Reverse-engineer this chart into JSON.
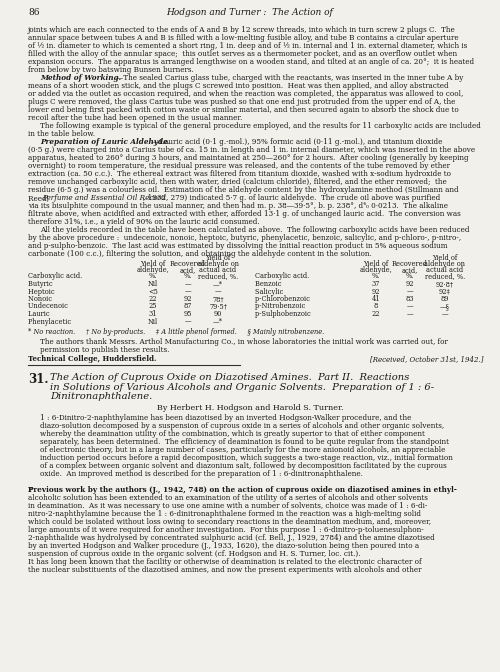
{
  "page_number": "86",
  "header_title": "Hodgson and Turner :  The Action of",
  "bg_color": "#f2f0eb",
  "text_color": "#1a1a1a",
  "body_text_intro": [
    "joints which are each connected to the ends of A and B by 12 screw threads, into which in turn screw 2 plugs C.  The",
    "annular space between tubes A and B is filled with a low-melting fusible alloy, and tube B contains a circular aperture",
    "of ½ in. diameter to which is cemented a short ring, 1 in. deep and of ½ in. internal and 1 in. external diameter, which is",
    "filled with the alloy of the annular space;  this outlet serves as a thermometer pocket, and as an overflow outlet when",
    "expansion occurs.  The apparatus is arranged lengthwise on a wooden stand, and tilted at an angle of ca. 20°;  it is heated",
    "from below by two batswing Bunsen burners."
  ],
  "method_heading": "Method of Working.",
  "method_rest": "—The sealed Carius glass tube, charged with the reactants, was inserted in the inner tube A by",
  "method_text": [
    "means of a short wooden stick, and the plugs C screwed into position.  Heat was then applied, and alloy abstracted",
    "or added via the outlet as occasion required, and when the reaction was completed, the apparatus was allowed to cool,",
    "plugs C were removed, the glass Carius tube was pushed so that one end just protruded from the upper end of A, the",
    "lower end being first packed with cotton waste or similar material, and then secured again to absorb the shock due to",
    "recoil after the tube had been opened in the usual manner."
  ],
  "para2": [
    "The following example is typical of the general procedure employed, and the results for 11 carboxylic acids are included",
    "in the table below."
  ],
  "prep_heading": "Preparation of Lauric Aldehyde.",
  "prep_rest": "—Lauric acid (0·1 g.-mol.), 95% formic acid (0·11 g.-mol.), and titanium dioxide",
  "prep_text": [
    "(0·5 g.) were charged into a Carius tube of ca. 15 in. in length and 1 in. internal diameter, which was inserted in the above",
    "apparatus, heated to 260° during 3 hours, and maintained at 250—260° for 2 hours.  After cooling (generally by keeping",
    "overnight) to room temperature, the residual pressure was released, and the contents of the tube removed by ether",
    "extraction (ca. 50 c.c.).  The ethereal extract was filtered from titanium dioxide, washed with x-sodium hydroxide to",
    "remove unchanged carboxylic acid, then with water, dried (calcium chloride), filtered, and the ether removed;  the",
    "residue (6·5 g.) was a colourless oil.  Estimation of the aldehyde content by the hydroxylamine method (Stillmann and"
  ],
  "prep_text_reed_pre": "Reed, ",
  "prep_text_reed_italic": "Perfume and Essential Oil Record",
  "prep_text_reed_post": ", 1932, 279) indicated 5·7 g. of lauric aldehyde.  The crude oil above was purified",
  "prep_text2": [
    "via its bisulphite compound in the usual manner, and then had m. p. 38—39·5°, b. p. 238°, d⁴₀ 0·0213.  The alkaline",
    "filtrate above, when acidified and extracted with ether, afforded 13·1 g. of unchanged lauric acid.  The conversion was",
    "therefore 31%, i.e., a yield of 90% on the lauric acid consumed."
  ],
  "para3": [
    "All the yields recorded in the table have been calculated as above.  The following carboxylic acids have been reduced",
    "by the above procedure :  undecenoic, nonoic, heptoic, butyric, phenylacetic, benzoic, salicylic, and p-chloro-, p-nitro-,",
    "and p-sulpho-benzoic.  The last acid was estimated by dissolving the initial reaction product in 5% aqueous sodium",
    "carbonate (100 c.c.), filtering the solution, and obtaining the aldehyde content in the solution."
  ],
  "table_left_acids": [
    "Butyric           ",
    "Heptoic          ",
    "Nonoic           ",
    "Undecenoic      ",
    "Lauric           ",
    "Phenylacetic    "
  ],
  "table_left_yield": [
    "Nil",
    "<5",
    "22",
    "25",
    "31",
    "Nil"
  ],
  "table_left_recov": [
    "—",
    "—",
    "92",
    "87",
    "95",
    "—"
  ],
  "table_left_actual": [
    "—*",
    "—",
    "78†",
    "79·5†",
    "90",
    "—*"
  ],
  "table_right_acids": [
    "Benzoic           ",
    "Salicylic           ",
    "p-Chlorobenzoic    ",
    "p-Nitrobenzoic    ",
    "p-Sulphobenzoic   ",
    ""
  ],
  "table_right_yield": [
    "37",
    "92",
    "41",
    "8",
    "22",
    ""
  ],
  "table_right_recov": [
    "92",
    "—",
    "83",
    "—",
    "—",
    ""
  ],
  "table_right_actual": [
    "92·8†",
    "92‡",
    "89",
    "—§",
    "—",
    ""
  ],
  "footnotes": "* No reaction.     † No by-products.     ‡ A little phenol formed.     § Mainly nitrobenzene.",
  "ack_text": [
    "The authors thank Messrs. Arthol Manufacturing Co., in whose laboratories the initial work was carried out, for",
    "permission to publish these results."
  ],
  "institution": "Technical College, Huddersfield.",
  "received": "[Received, October 31st, 1942.]",
  "section_num": "31.",
  "section_title": "The Action of Cuprous Oxide on Diazotised Amines.  Part II.  Reactions",
  "section_title2": "in Solutions of Various Alcohols and Organic Solvents.  Preparation of 1 : 6-",
  "section_title3": "Dinitronaphthalene.",
  "authors_line": "By Herbert H. Hodgson and Harold S. Turner.",
  "abstract_text": [
    "1 : 6-Dinitro-2-naphthylamine has been diazotised by an inverted Hodgson-Walker procedure, and the",
    "diazo-solution decomposed by a suspension of cuprous oxide in a series of alcohols and other organic solvents,",
    "whereby the deamination utility of the combination, which is greatly superior to that of either component",
    "separately, has been determined.  The efficiency of deamination is found to be quite regular from the standpoint",
    "of electronic theory, but in a large number of cases, particularly for the more anionoid alcohols, an appreciable",
    "induction period occurs before a rapid decomposition, which suggests a two-stage reaction, viz., initial formation",
    "of a complex between organic solvent and diazonium salt, followed by decomposition facilitated by the cuprous",
    "oxide.  An improved method is described for the preparation of 1 : 6-dinitronaphthalene."
  ],
  "previous_work": [
    "Previous work by the authors (J., 1942, 748) on the action of cuprous oxide on diazotised amines in ethyl-",
    "alcoholic solution has been extended to an examination of the utility of a series of alcohols and other solvents",
    "in deamination.  As it was necessary to use one amine with a number of solvents, choice was made of 1 : 6-di-",
    "nitro-2-naphthylamine because the 1 : 6-dinitronaphthalene formed in the reaction was a high-melting solid",
    "which could be isolated without loss owing to secondary reactions in the deamination medium, and, moreover,",
    "large amounts of it were required for another investigation.  For this purpose 1 : 6-dinitro-p-toluenesulphon-",
    "2-naphthalide was hydrolysed by concentrated sulphuric acid (cf. Bell, J., 1929, 2784) and the amine diazotised",
    "by an inverted Hodgson and Walker procedure (J., 1933, 1620), the diazo-solution being then poured into a",
    "suspension of cuprous oxide in the organic solvent (cf. Hodgson and H. S. Turner, loc. cit.).",
    "It has long been known that the facility or otherwise of deamination is related to the electronic character of",
    "the nuclear substituents of the diazotised amines, and now the present experiments with alcohols and other"
  ]
}
